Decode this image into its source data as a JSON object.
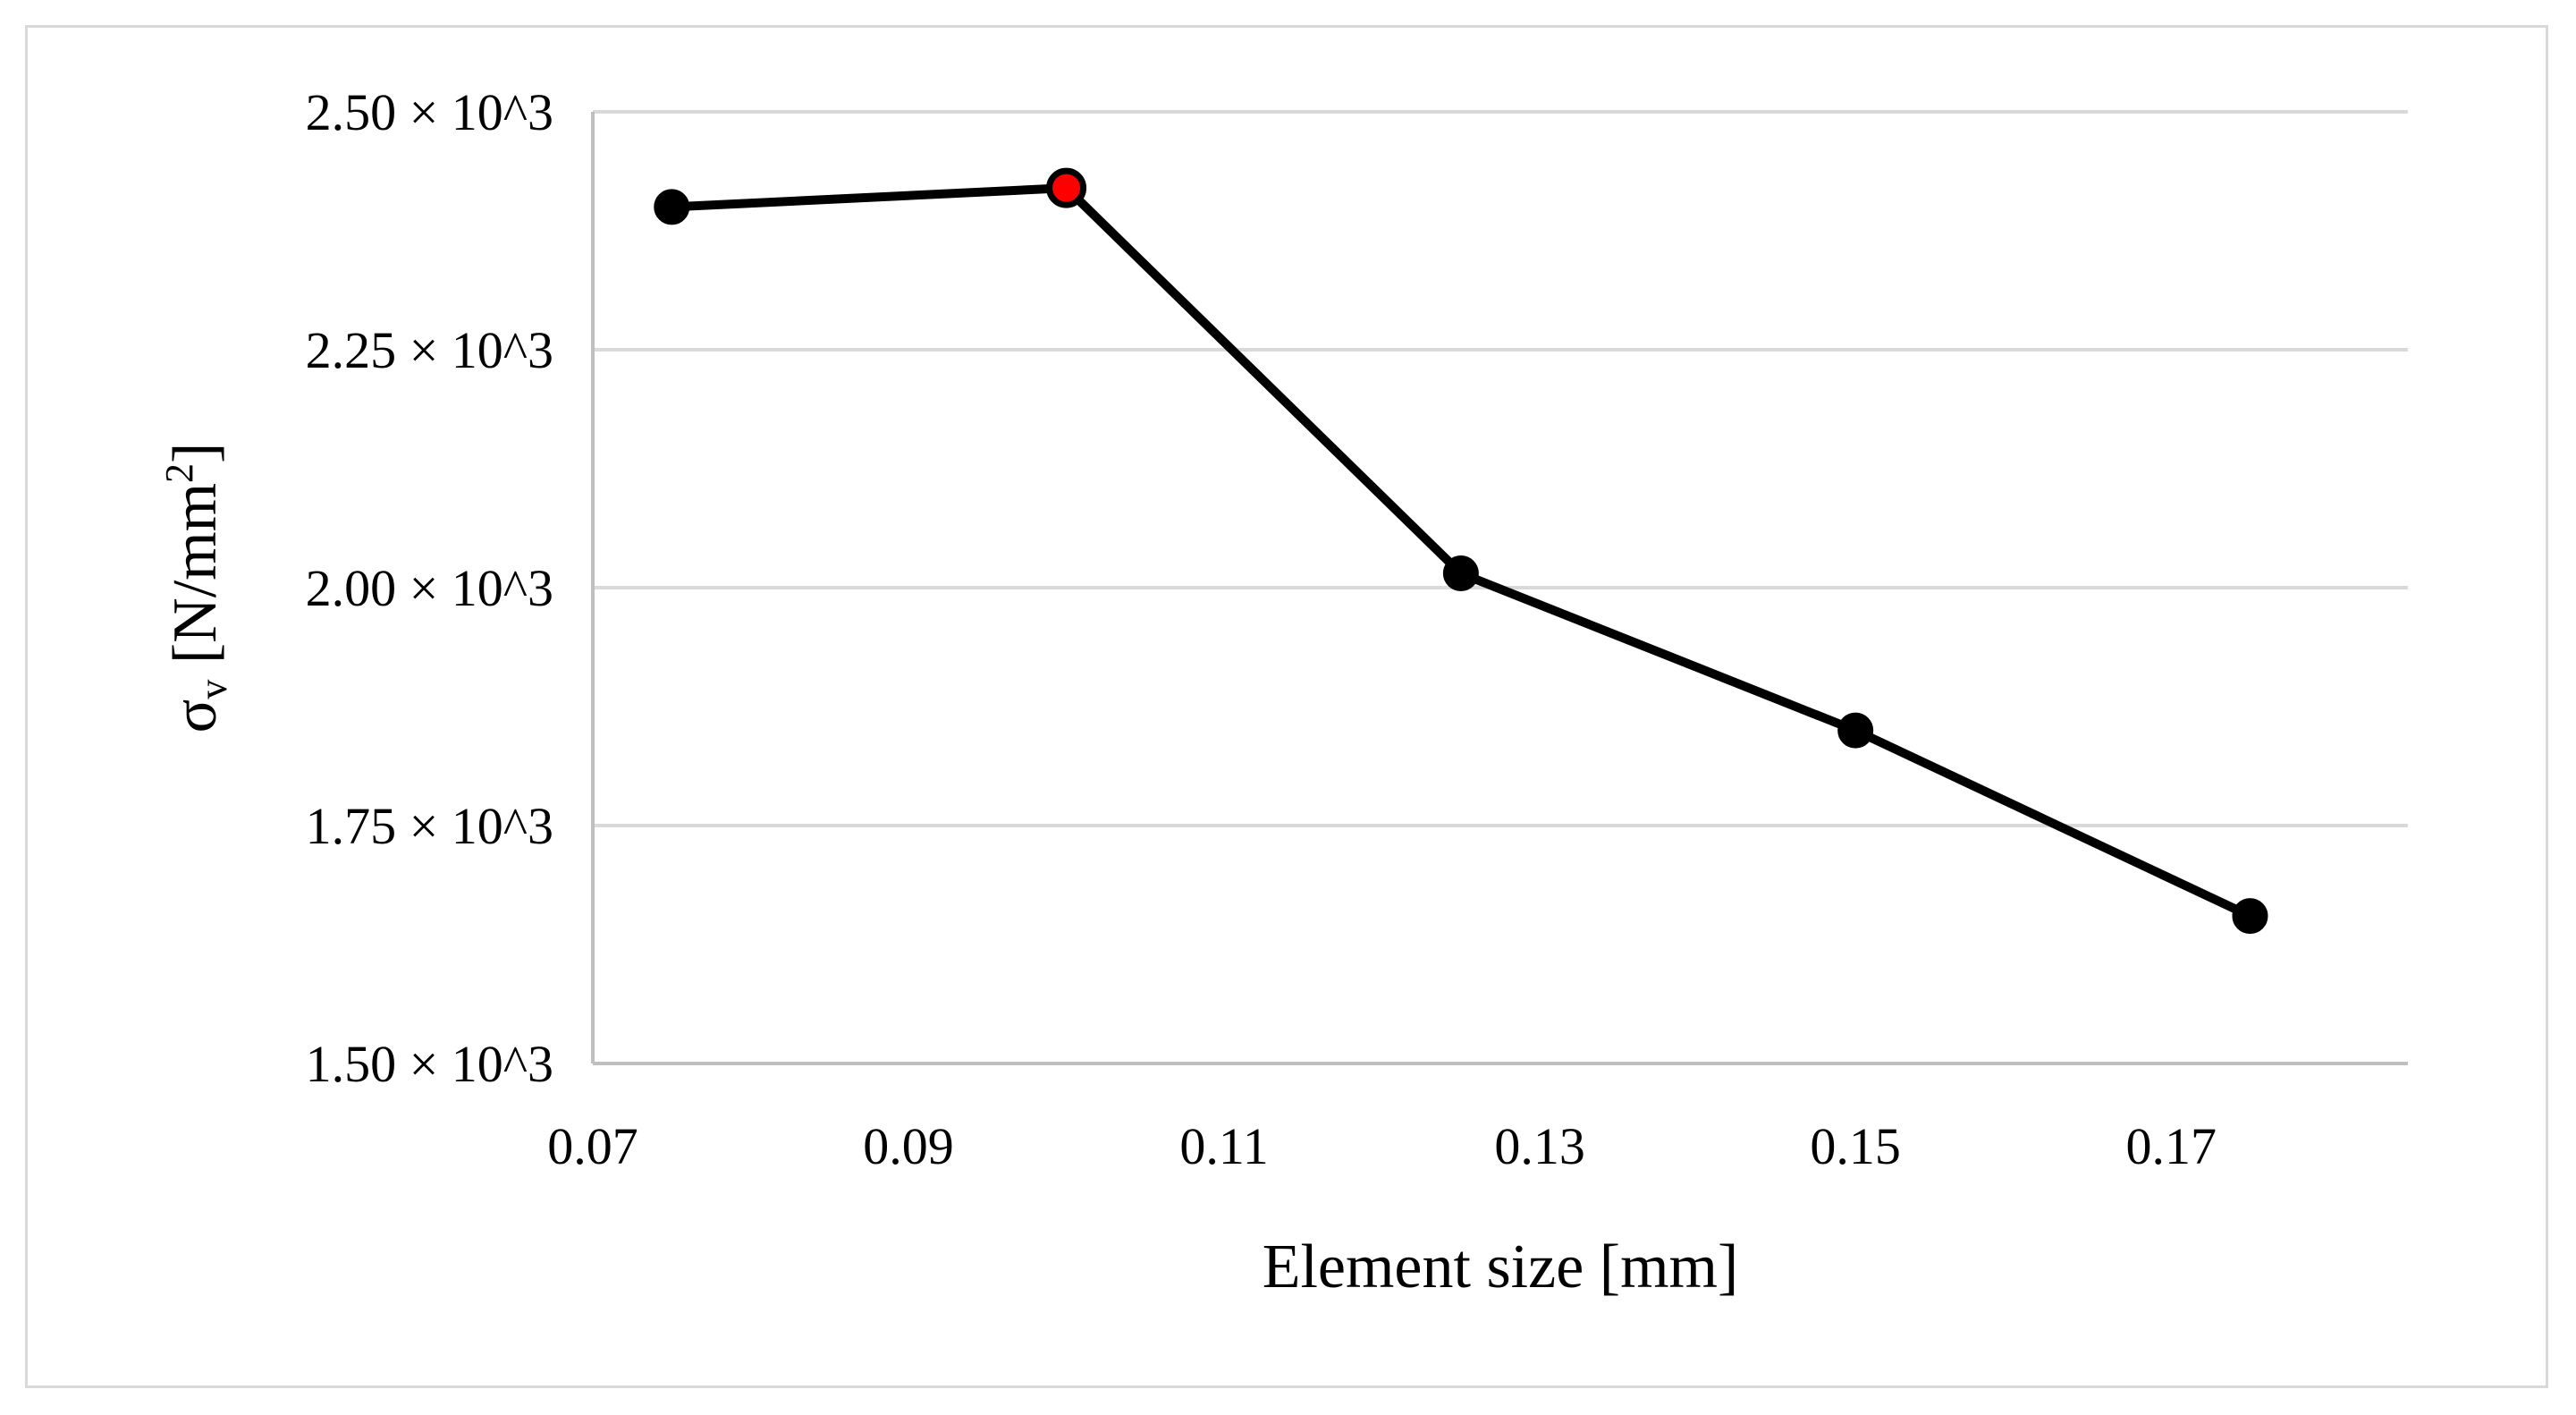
{
  "chart_data": {
    "type": "line",
    "title": "",
    "xlabel": "Element size [mm]",
    "ylabel": {
      "symbol": "σ",
      "subscript": "v",
      "unit_open": " [N/mm",
      "unit_power": "2",
      "unit_close": "]"
    },
    "x": [
      0.075,
      0.1,
      0.125,
      0.15,
      0.175
    ],
    "values": [
      2400,
      2420,
      2015,
      1850,
      1655
    ],
    "highlight_index": 1,
    "xlim": [
      0.07,
      0.185
    ],
    "ylim": [
      1500,
      2500
    ],
    "x_ticks": [
      0.07,
      0.09,
      0.11,
      0.13,
      0.15,
      0.17
    ],
    "x_tick_labels": [
      "0.07",
      "0.09",
      "0.11",
      "0.13",
      "0.15",
      "0.17"
    ],
    "y_ticks": [
      1500,
      1750,
      2000,
      2250,
      2500
    ],
    "y_tick_labels": [
      "1.50 × 10^3",
      "1.75 × 10^3",
      "2.00 × 10^3",
      "2.25 × 10^3",
      "2.50 × 10^3"
    ],
    "grid": true,
    "legend": "none",
    "colors": {
      "line": "#000000",
      "marker": "#000000",
      "highlight_marker": "#ff0000",
      "grid": "#d9d9d9",
      "axis": "#bfbfbf",
      "frame": "#d9d9d9"
    }
  }
}
